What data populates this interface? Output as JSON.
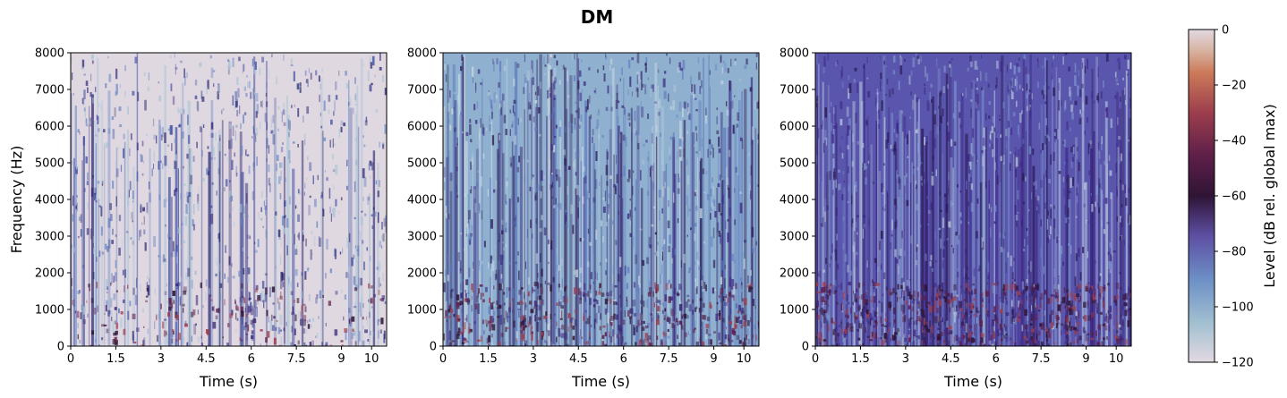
{
  "figure": {
    "title": "DM"
  },
  "chart_data": [
    {
      "type": "heatmap",
      "panel": 1,
      "xlabel": "Time (s)",
      "ylabel": "Frequency (Hz)",
      "xlim": [
        0,
        10.5
      ],
      "ylim": [
        0,
        8000
      ],
      "xticks": [
        "0",
        "1.5",
        "3",
        "4.5",
        "6",
        "7.5",
        "9",
        "10"
      ],
      "yticks": [
        "0",
        "1000",
        "2000",
        "3000",
        "4000",
        "5000",
        "6000",
        "7000",
        "8000"
      ]
    },
    {
      "type": "heatmap",
      "panel": 2,
      "xlabel": "Time (s)",
      "ylabel": "",
      "xlim": [
        0,
        10.5
      ],
      "ylim": [
        0,
        8000
      ],
      "xticks": [
        "0",
        "1.5",
        "3",
        "4.5",
        "6",
        "7.5",
        "9",
        "10"
      ],
      "yticks": [
        "0",
        "1000",
        "2000",
        "3000",
        "4000",
        "5000",
        "6000",
        "7000",
        "8000"
      ]
    },
    {
      "type": "heatmap",
      "panel": 3,
      "xlabel": "Time (s)",
      "ylabel": "",
      "xlim": [
        0,
        10.5
      ],
      "ylim": [
        0,
        8000
      ],
      "xticks": [
        "0",
        "1.5",
        "3",
        "4.5",
        "6",
        "7.5",
        "9",
        "10"
      ],
      "yticks": [
        "0",
        "1000",
        "2000",
        "3000",
        "4000",
        "5000",
        "6000",
        "7000",
        "8000"
      ]
    }
  ],
  "colorbar": {
    "label": "Level (dB rel. global max)",
    "range": [
      -120,
      0
    ],
    "ticks": [
      "0",
      "−20",
      "−40",
      "−60",
      "−80",
      "−100",
      "−120"
    ],
    "colormap": [
      "#e2d9e2",
      "#a1bfd0",
      "#6c8fc6",
      "#5e4fa3",
      "#2f1436",
      "#5e1f49",
      "#9c3e4d",
      "#cc7a59",
      "#d8b5a5",
      "#e2d9e2"
    ]
  }
}
